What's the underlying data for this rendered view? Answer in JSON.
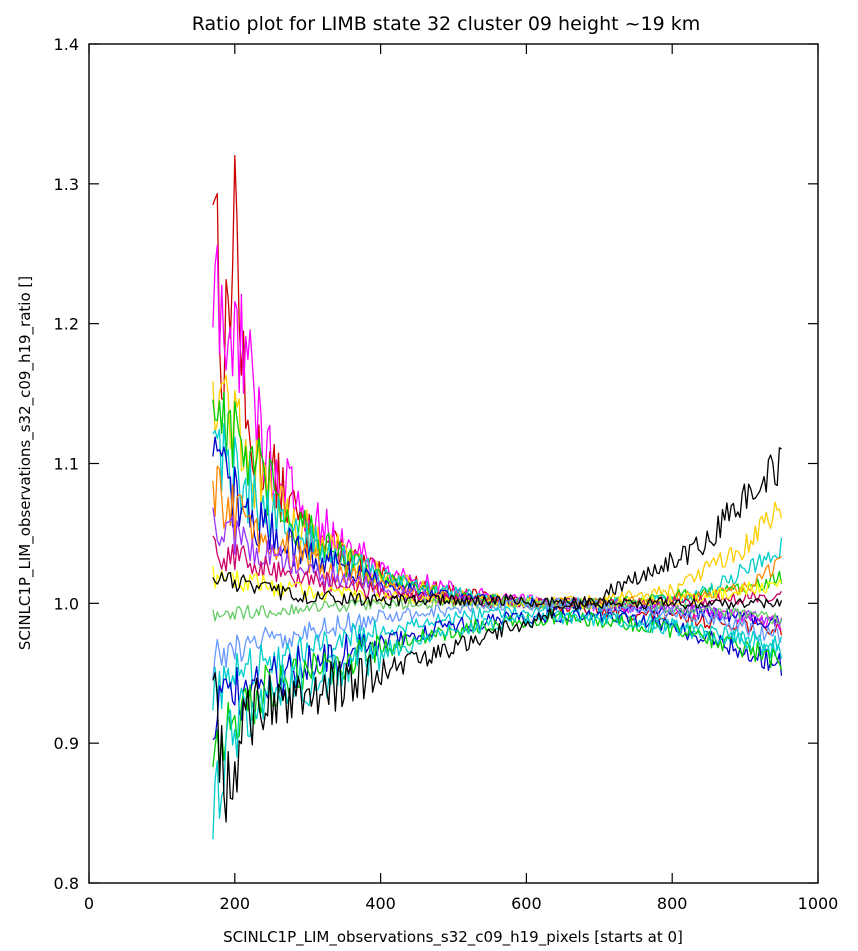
{
  "chart_data": {
    "type": "line",
    "title": "Ratio plot for LIMB state 32 cluster 09 height ~19 km",
    "xlabel": "SCINLC1P_LIM_observations_s32_c09_h19_pixels [starts at 0]",
    "ylabel": "SCINLC1P_LIM_observations_s32_c09_h19_ratio []",
    "xlim": [
      0,
      1000
    ],
    "ylim": [
      0.8,
      1.4
    ],
    "xticks": [
      "0",
      "200",
      "400",
      "600",
      "800",
      "1000"
    ],
    "yticks": [
      "0.8",
      "0.9",
      "1.0",
      "1.1",
      "1.2",
      "1.3",
      "1.4"
    ],
    "x_range": [
      170,
      950
    ],
    "grid": false,
    "legend": "none",
    "series": [
      {
        "color": "#cc0000",
        "values": [
          [
            170,
            1.33
          ],
          [
            185,
            1.16
          ],
          [
            200,
            1.29
          ],
          [
            215,
            1.12
          ],
          [
            240,
            1.1
          ],
          [
            300,
            1.05
          ],
          [
            400,
            1.02
          ],
          [
            500,
            1.008
          ],
          [
            600,
            1.0
          ],
          [
            700,
            0.995
          ],
          [
            800,
            0.99
          ],
          [
            900,
            0.985
          ],
          [
            950,
            0.98
          ]
        ]
      },
      {
        "color": "#ff00ff",
        "values": [
          [
            170,
            1.22
          ],
          [
            190,
            1.18
          ],
          [
            210,
            1.2
          ],
          [
            230,
            1.13
          ],
          [
            260,
            1.09
          ],
          [
            300,
            1.06
          ],
          [
            400,
            1.025
          ],
          [
            500,
            1.01
          ],
          [
            600,
            1.002
          ],
          [
            700,
            0.998
          ],
          [
            800,
            0.996
          ],
          [
            900,
            0.99
          ],
          [
            950,
            0.985
          ]
        ]
      },
      {
        "color": "#ffcc00",
        "values": [
          [
            170,
            1.17
          ],
          [
            200,
            1.13
          ],
          [
            240,
            1.08
          ],
          [
            300,
            1.05
          ],
          [
            400,
            1.02
          ],
          [
            500,
            1.006
          ],
          [
            600,
            1.0
          ],
          [
            700,
            1.002
          ],
          [
            800,
            1.01
          ],
          [
            900,
            1.04
          ],
          [
            950,
            1.07
          ]
        ]
      },
      {
        "color": "#00cc00",
        "values": [
          [
            170,
            1.15
          ],
          [
            210,
            1.11
          ],
          [
            260,
            1.07
          ],
          [
            320,
            1.04
          ],
          [
            400,
            1.018
          ],
          [
            500,
            1.005
          ],
          [
            600,
            1.0
          ],
          [
            700,
            1.0
          ],
          [
            800,
            1.005
          ],
          [
            900,
            1.01
          ],
          [
            950,
            1.02
          ]
        ]
      },
      {
        "color": "#00cccc",
        "values": [
          [
            170,
            1.12
          ],
          [
            220,
            1.08
          ],
          [
            280,
            1.05
          ],
          [
            350,
            1.03
          ],
          [
            450,
            1.012
          ],
          [
            550,
            1.003
          ],
          [
            650,
            1.0
          ],
          [
            750,
            1.0
          ],
          [
            850,
            1.008
          ],
          [
            950,
            1.04
          ]
        ]
      },
      {
        "color": "#0000cc",
        "values": [
          [
            170,
            1.1
          ],
          [
            220,
            1.06
          ],
          [
            300,
            1.035
          ],
          [
            400,
            1.015
          ],
          [
            500,
            1.004
          ],
          [
            600,
            1.0
          ],
          [
            700,
            0.998
          ],
          [
            800,
            0.995
          ],
          [
            900,
            0.99
          ],
          [
            950,
            0.985
          ]
        ]
      },
      {
        "color": "#ff8800",
        "values": [
          [
            170,
            1.08
          ],
          [
            230,
            1.05
          ],
          [
            300,
            1.03
          ],
          [
            400,
            1.012
          ],
          [
            500,
            1.003
          ],
          [
            600,
            1.0
          ],
          [
            700,
            1.0
          ],
          [
            800,
            1.003
          ],
          [
            900,
            1.01
          ],
          [
            950,
            1.03
          ]
        ]
      },
      {
        "color": "#9933ff",
        "values": [
          [
            170,
            1.06
          ],
          [
            240,
            1.035
          ],
          [
            320,
            1.02
          ],
          [
            420,
            1.008
          ],
          [
            520,
            1.002
          ],
          [
            620,
            1.0
          ],
          [
            720,
            0.999
          ],
          [
            820,
            0.997
          ],
          [
            920,
            0.99
          ],
          [
            950,
            0.988
          ]
        ]
      },
      {
        "color": "#cc0066",
        "values": [
          [
            170,
            1.04
          ],
          [
            240,
            1.025
          ],
          [
            330,
            1.014
          ],
          [
            430,
            1.006
          ],
          [
            530,
            1.001
          ],
          [
            630,
            1.0
          ],
          [
            730,
            1.0
          ],
          [
            830,
            1.002
          ],
          [
            930,
            1.005
          ],
          [
            950,
            1.008
          ]
        ]
      },
      {
        "color": "#ffff00",
        "values": [
          [
            170,
            1.02
          ],
          [
            250,
            1.012
          ],
          [
            350,
            1.006
          ],
          [
            450,
            1.003
          ],
          [
            550,
            1.0
          ],
          [
            650,
            1.0
          ],
          [
            750,
            1.001
          ],
          [
            850,
            1.005
          ],
          [
            950,
            1.015
          ]
        ]
      },
      {
        "color": "#66cc66",
        "values": [
          [
            170,
            0.99
          ],
          [
            250,
            0.995
          ],
          [
            350,
            0.998
          ],
          [
            450,
            1.0
          ],
          [
            550,
            1.0
          ],
          [
            650,
            1.0
          ],
          [
            750,
            0.999
          ],
          [
            850,
            0.995
          ],
          [
            950,
            0.99
          ]
        ]
      },
      {
        "color": "#6699ff",
        "values": [
          [
            170,
            0.96
          ],
          [
            250,
            0.975
          ],
          [
            350,
            0.985
          ],
          [
            450,
            0.993
          ],
          [
            550,
            0.998
          ],
          [
            650,
            1.0
          ],
          [
            750,
            0.996
          ],
          [
            850,
            0.99
          ],
          [
            950,
            0.975
          ]
        ]
      },
      {
        "color": "#00cccc",
        "values": [
          [
            170,
            0.94
          ],
          [
            230,
            0.955
          ],
          [
            300,
            0.968
          ],
          [
            400,
            0.98
          ],
          [
            500,
            0.99
          ],
          [
            600,
            0.995
          ],
          [
            700,
            0.993
          ],
          [
            800,
            0.985
          ],
          [
            900,
            0.975
          ],
          [
            950,
            0.965
          ]
        ]
      },
      {
        "color": "#0000cc",
        "values": [
          [
            170,
            0.92
          ],
          [
            220,
            0.94
          ],
          [
            290,
            0.955
          ],
          [
            380,
            0.97
          ],
          [
            480,
            0.982
          ],
          [
            580,
            0.99
          ],
          [
            680,
            0.992
          ],
          [
            780,
            0.985
          ],
          [
            880,
            0.97
          ],
          [
            950,
            0.955
          ]
        ]
      },
      {
        "color": "#00cc00",
        "values": [
          [
            170,
            0.9
          ],
          [
            210,
            0.93
          ],
          [
            270,
            0.945
          ],
          [
            350,
            0.96
          ],
          [
            450,
            0.975
          ],
          [
            550,
            0.985
          ],
          [
            650,
            0.99
          ],
          [
            750,
            0.985
          ],
          [
            850,
            0.975
          ],
          [
            950,
            0.96
          ]
        ]
      },
      {
        "color": "#00cccc",
        "values": [
          [
            170,
            0.85
          ],
          [
            190,
            0.9
          ],
          [
            210,
            0.92
          ],
          [
            250,
            0.935
          ],
          [
            330,
            0.95
          ],
          [
            430,
            0.97
          ],
          [
            530,
            0.983
          ],
          [
            630,
            0.99
          ],
          [
            730,
            0.988
          ],
          [
            830,
            0.98
          ],
          [
            950,
            0.97
          ]
        ]
      },
      {
        "color": "#000000",
        "values": [
          [
            170,
            0.95
          ],
          [
            180,
            0.88
          ],
          [
            195,
            0.87
          ],
          [
            210,
            0.91
          ],
          [
            240,
            0.93
          ],
          [
            280,
            0.935
          ],
          [
            330,
            0.94
          ],
          [
            400,
            0.95
          ],
          [
            480,
            0.965
          ],
          [
            560,
            0.98
          ],
          [
            640,
            0.993
          ],
          [
            700,
            1.005
          ],
          [
            760,
            1.02
          ],
          [
            820,
            1.035
          ],
          [
            850,
            1.045
          ],
          [
            870,
            1.06
          ],
          [
            900,
            1.075
          ],
          [
            930,
            1.09
          ],
          [
            950,
            1.1
          ]
        ]
      },
      {
        "color": "#000000",
        "values": [
          [
            170,
            1.02
          ],
          [
            230,
            1.01
          ],
          [
            300,
            1.005
          ],
          [
            400,
            1.002
          ],
          [
            500,
            1.003
          ],
          [
            600,
            1.002
          ],
          [
            700,
            1.0
          ],
          [
            800,
            1.0
          ],
          [
            900,
            1.0
          ],
          [
            950,
            1.0
          ]
        ]
      }
    ]
  }
}
